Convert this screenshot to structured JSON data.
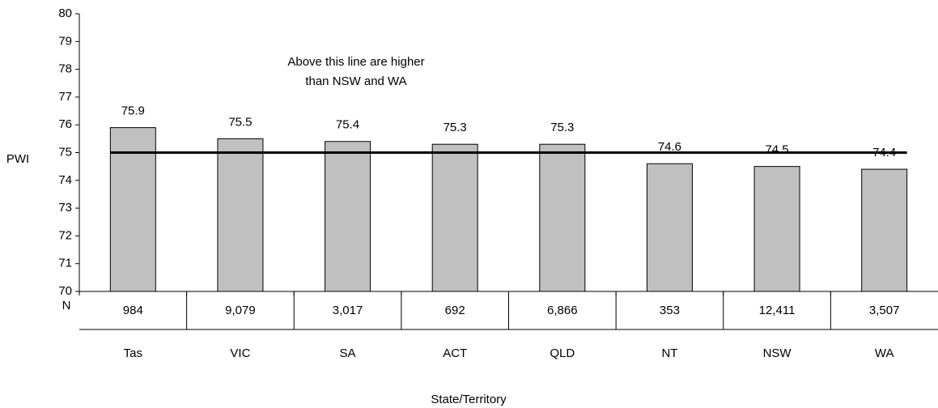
{
  "chart_data": {
    "type": "bar",
    "y_label": "PWI",
    "x_label": "State/Territory",
    "categories": [
      "Tas",
      "VIC",
      "SA",
      "ACT",
      "QLD",
      "NT",
      "NSW",
      "WA"
    ],
    "values": [
      75.9,
      75.5,
      75.4,
      75.3,
      75.3,
      74.6,
      74.5,
      74.4
    ],
    "color": "#c0c0c0",
    "ylim": [
      70,
      80
    ],
    "yticks": [
      70,
      71,
      72,
      73,
      74,
      75,
      76,
      77,
      78,
      79,
      80
    ],
    "reference_line": 75,
    "annotation": [
      "Above this line are higher",
      "than NSW and WA"
    ],
    "n_label": "N",
    "n_values": [
      "984",
      "9,079",
      "3,017",
      "692",
      "6,866",
      "353",
      "12,411",
      "3,507"
    ]
  }
}
